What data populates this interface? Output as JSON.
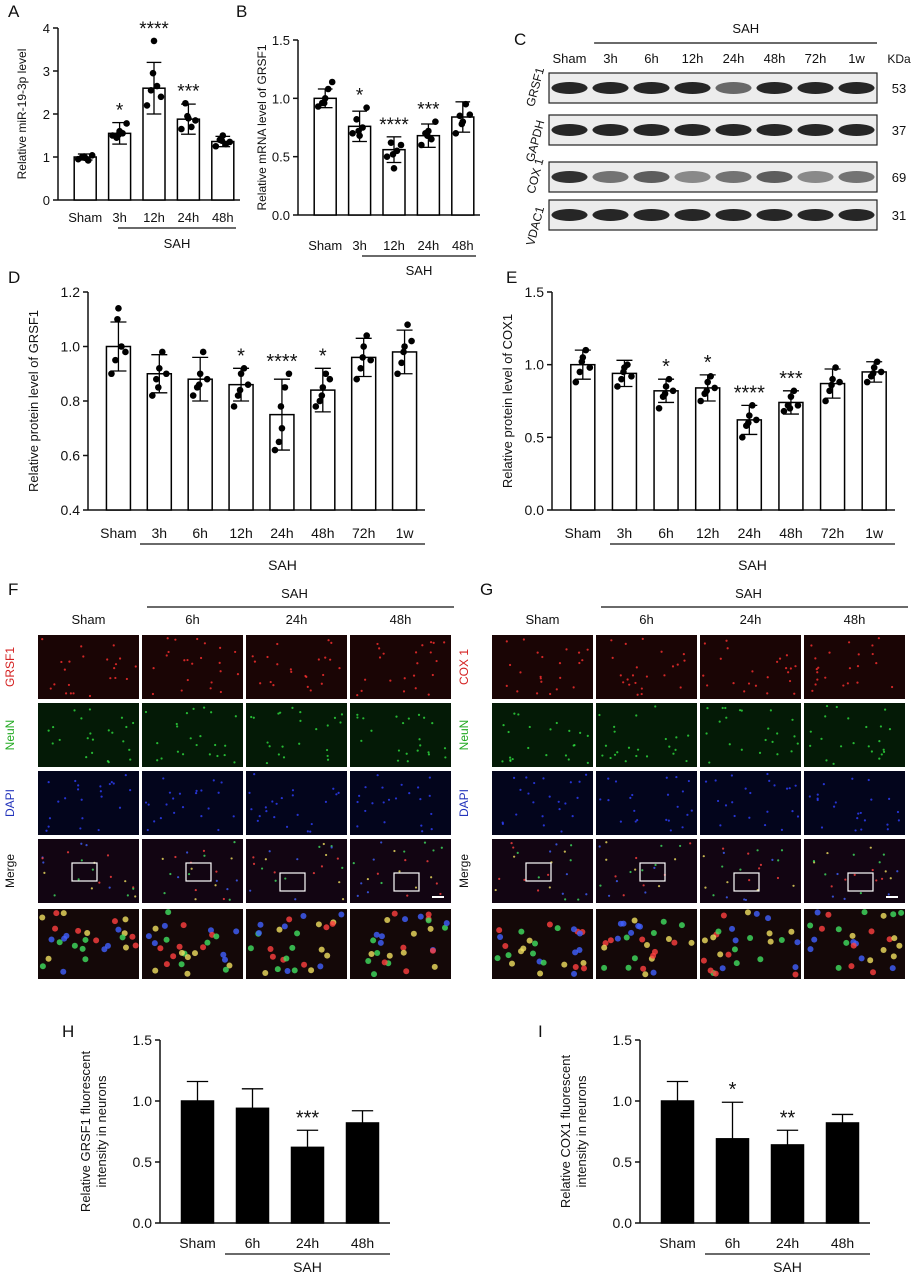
{
  "panels": {
    "A": "A",
    "B": "B",
    "C": "C",
    "D": "D",
    "E": "E",
    "F": "F",
    "G": "G",
    "H": "H",
    "I": "I"
  },
  "sah_label": "SAH",
  "chart_data": [
    {
      "id": "A",
      "type": "bar",
      "categories": [
        "Sham",
        "3h",
        "12h",
        "24h",
        "48h"
      ],
      "values": [
        1.0,
        1.55,
        2.6,
        1.88,
        1.36
      ],
      "errors": [
        0.07,
        0.25,
        0.6,
        0.35,
        0.12
      ],
      "points": [
        [
          0.95,
          1.0,
          0.98,
          0.92,
          1.04,
          1.01
        ],
        [
          1.5,
          1.45,
          1.6,
          1.55,
          1.78,
          1.52
        ],
        [
          2.2,
          2.55,
          3.7,
          2.65,
          2.4,
          2.95
        ],
        [
          1.65,
          2.25,
          1.9,
          1.7,
          1.85,
          1.95
        ],
        [
          1.25,
          1.4,
          1.5,
          1.3,
          1.35,
          1.38
        ]
      ],
      "sig": [
        "",
        "*",
        "****",
        "***",
        ""
      ],
      "ylabel": "Relative miR-19-3p level",
      "ylim": [
        0,
        4
      ],
      "yticks": [
        0,
        1,
        2,
        3,
        4
      ],
      "ytick_labels": [
        "0",
        "1",
        "2",
        "3",
        "4"
      ]
    },
    {
      "id": "B",
      "type": "bar",
      "categories": [
        "Sham",
        "3h",
        "12h",
        "24h",
        "48h"
      ],
      "values": [
        1.0,
        0.76,
        0.56,
        0.68,
        0.84
      ],
      "errors": [
        0.08,
        0.13,
        0.11,
        0.1,
        0.13
      ],
      "points": [
        [
          0.93,
          0.96,
          1.0,
          1.08,
          1.14,
          0.96
        ],
        [
          0.7,
          0.82,
          0.68,
          0.75,
          0.92,
          0.72
        ],
        [
          0.5,
          0.62,
          0.4,
          0.55,
          0.6,
          0.52
        ],
        [
          0.6,
          0.7,
          0.72,
          0.65,
          0.8,
          0.68
        ],
        [
          0.7,
          0.85,
          0.8,
          0.95,
          0.86,
          0.78
        ]
      ],
      "sig": [
        "",
        "*",
        "****",
        "***",
        ""
      ],
      "ylabel": "Relative mRNA level of GRSF1",
      "ylim": [
        0,
        1.5
      ],
      "yticks": [
        0,
        0.5,
        1,
        1.5
      ],
      "ytick_labels": [
        "0.0",
        "0.5",
        "1.0",
        "1.5"
      ]
    },
    {
      "id": "D",
      "type": "bar",
      "categories": [
        "Sham",
        "3h",
        "6h",
        "12h",
        "24h",
        "48h",
        "72h",
        "1w"
      ],
      "values": [
        1.0,
        0.9,
        0.88,
        0.86,
        0.75,
        0.84,
        0.96,
        0.98
      ],
      "errors": [
        0.09,
        0.07,
        0.08,
        0.06,
        0.13,
        0.08,
        0.07,
        0.08
      ],
      "points": [
        [
          0.9,
          0.95,
          1.14,
          1.0,
          0.98,
          1.1
        ],
        [
          0.82,
          0.88,
          0.92,
          0.98,
          0.9,
          0.85
        ],
        [
          0.82,
          0.85,
          0.9,
          0.98,
          0.88,
          0.86
        ],
        [
          0.78,
          0.82,
          0.9,
          0.92,
          0.86,
          0.84
        ],
        [
          0.62,
          0.65,
          0.7,
          0.85,
          0.9,
          0.78
        ],
        [
          0.78,
          0.8,
          0.85,
          0.9,
          0.88,
          0.82
        ],
        [
          0.88,
          0.92,
          1.0,
          1.04,
          0.95,
          0.96
        ],
        [
          0.9,
          0.94,
          1.0,
          1.08,
          1.02,
          0.98
        ]
      ],
      "sig": [
        "",
        "",
        "",
        "*",
        "****",
        "*",
        "",
        ""
      ],
      "ylabel": "Relative protein level of GRSF1",
      "ylim": [
        0.4,
        1.2
      ],
      "yticks": [
        0.4,
        0.6,
        0.8,
        1.0,
        1.2
      ],
      "ytick_labels": [
        "0.4",
        "0.6",
        "0.8",
        "1.0",
        "1.2"
      ]
    },
    {
      "id": "E",
      "type": "bar",
      "categories": [
        "Sham",
        "3h",
        "6h",
        "12h",
        "24h",
        "48h",
        "72h",
        "1w"
      ],
      "values": [
        1.0,
        0.94,
        0.82,
        0.84,
        0.62,
        0.74,
        0.87,
        0.95
      ],
      "errors": [
        0.1,
        0.09,
        0.08,
        0.09,
        0.1,
        0.08,
        0.1,
        0.07
      ],
      "points": [
        [
          0.88,
          0.95,
          1.05,
          1.1,
          0.98,
          1.02
        ],
        [
          0.85,
          0.9,
          0.98,
          1.0,
          0.92,
          0.95
        ],
        [
          0.7,
          0.78,
          0.85,
          0.9,
          0.82,
          0.8
        ],
        [
          0.75,
          0.8,
          0.88,
          0.92,
          0.84,
          0.82
        ],
        [
          0.5,
          0.58,
          0.65,
          0.72,
          0.62,
          0.6
        ],
        [
          0.68,
          0.72,
          0.78,
          0.82,
          0.72,
          0.7
        ],
        [
          0.75,
          0.82,
          0.9,
          0.98,
          0.88,
          0.86
        ],
        [
          0.88,
          0.92,
          0.98,
          1.02,
          0.95,
          0.94
        ]
      ],
      "sig": [
        "",
        "",
        "*",
        "*",
        "****",
        "***",
        "",
        ""
      ],
      "ylabel": "Relative protein level of COX1",
      "ylim": [
        0,
        1.5
      ],
      "yticks": [
        0,
        0.5,
        1,
        1.5
      ],
      "ytick_labels": [
        "0.0",
        "0.5",
        "1.0",
        "1.5"
      ]
    },
    {
      "id": "H",
      "type": "bar",
      "categories": [
        "Sham",
        "6h",
        "24h",
        "48h"
      ],
      "values": [
        1.0,
        0.94,
        0.62,
        0.82
      ],
      "errors": [
        0.16,
        0.16,
        0.14,
        0.1
      ],
      "sig": [
        "",
        "",
        "***",
        ""
      ],
      "ylabel": "Relative GRSF1 fluorescent intensity in neurons",
      "ylim": [
        0,
        1.5
      ],
      "yticks": [
        0,
        0.5,
        1,
        1.5
      ],
      "ytick_labels": [
        "0.0",
        "0.5",
        "1.0",
        "1.5"
      ]
    },
    {
      "id": "I",
      "type": "bar",
      "categories": [
        "Sham",
        "6h",
        "24h",
        "48h"
      ],
      "values": [
        1.0,
        0.69,
        0.64,
        0.82
      ],
      "errors": [
        0.16,
        0.3,
        0.12,
        0.07
      ],
      "sig": [
        "",
        "*",
        "**",
        ""
      ],
      "ylabel": "Relative COX1 fluorescent intensity in neurons",
      "ylim": [
        0,
        1.5
      ],
      "yticks": [
        0,
        0.5,
        1,
        1.5
      ],
      "ytick_labels": [
        "0.0",
        "0.5",
        "1.0",
        "1.5"
      ]
    }
  ],
  "western_blot": {
    "columns": [
      "Sham",
      "3h",
      "6h",
      "12h",
      "24h",
      "48h",
      "72h",
      "1w"
    ],
    "kda_header": "KDa",
    "bands": [
      {
        "name": "GRSF1",
        "kda": "53"
      },
      {
        "name": "GAPDH",
        "kda": "37"
      },
      {
        "name": "COX 1",
        "kda": "69"
      },
      {
        "name": "VDAC1",
        "kda": "31"
      }
    ]
  },
  "if_F": {
    "columns": [
      "Sham",
      "6h",
      "24h",
      "48h"
    ],
    "rows": [
      {
        "label": "GRSF1",
        "color": "#d42020"
      },
      {
        "label": "NeuN",
        "color": "#22aa22"
      },
      {
        "label": "DAPI",
        "color": "#2233bb"
      },
      {
        "label": "Merge",
        "color": "#111111"
      }
    ]
  },
  "if_G": {
    "columns": [
      "Sham",
      "6h",
      "24h",
      "48h"
    ],
    "rows": [
      {
        "label": "COX 1",
        "color": "#d42020"
      },
      {
        "label": "NeuN",
        "color": "#22aa22"
      },
      {
        "label": "DAPI",
        "color": "#2233bb"
      },
      {
        "label": "Merge",
        "color": "#111111"
      }
    ]
  }
}
